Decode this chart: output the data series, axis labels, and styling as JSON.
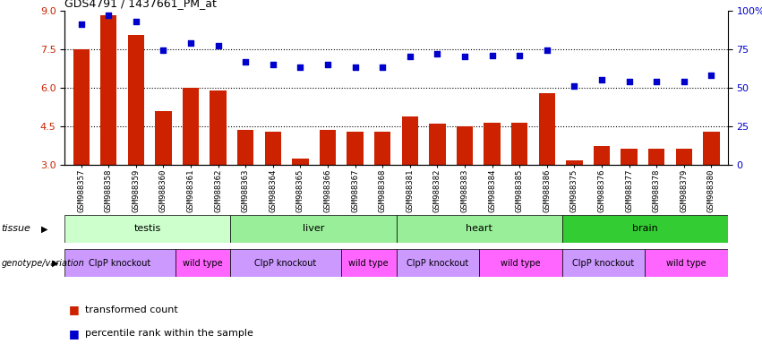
{
  "title": "GDS4791 / 1437661_PM_at",
  "samples": [
    "GSM988357",
    "GSM988358",
    "GSM988359",
    "GSM988360",
    "GSM988361",
    "GSM988362",
    "GSM988363",
    "GSM988364",
    "GSM988365",
    "GSM988366",
    "GSM988367",
    "GSM988368",
    "GSM988381",
    "GSM988382",
    "GSM988383",
    "GSM988384",
    "GSM988385",
    "GSM988386",
    "GSM988375",
    "GSM988376",
    "GSM988377",
    "GSM988378",
    "GSM988379",
    "GSM988380"
  ],
  "red_values": [
    7.5,
    8.8,
    8.05,
    5.1,
    6.0,
    5.9,
    4.35,
    4.3,
    3.25,
    4.35,
    4.3,
    4.3,
    4.9,
    4.6,
    4.5,
    4.65,
    4.65,
    5.8,
    3.2,
    3.75,
    3.65,
    3.65,
    3.65,
    4.3
  ],
  "blue_values": [
    91,
    97,
    93,
    74,
    79,
    77,
    67,
    65,
    63,
    65,
    63,
    63,
    70,
    72,
    70,
    71,
    71,
    74,
    51,
    55,
    54,
    54,
    54,
    58
  ],
  "tissue_blocks": [
    {
      "label": "testis",
      "start": 0,
      "end": 6,
      "color": "#ccffcc"
    },
    {
      "label": "liver",
      "start": 6,
      "end": 12,
      "color": "#99ee99"
    },
    {
      "label": "heart",
      "start": 12,
      "end": 18,
      "color": "#99ee99"
    },
    {
      "label": "brain",
      "start": 18,
      "end": 24,
      "color": "#33cc33"
    }
  ],
  "geno_blocks": [
    {
      "label": "ClpP knockout",
      "start": 0,
      "end": 4,
      "color": "#cc99ff"
    },
    {
      "label": "wild type",
      "start": 4,
      "end": 6,
      "color": "#ff66ff"
    },
    {
      "label": "ClpP knockout",
      "start": 6,
      "end": 10,
      "color": "#cc99ff"
    },
    {
      "label": "wild type",
      "start": 10,
      "end": 12,
      "color": "#ff66ff"
    },
    {
      "label": "ClpP knockout",
      "start": 12,
      "end": 15,
      "color": "#cc99ff"
    },
    {
      "label": "wild type",
      "start": 15,
      "end": 18,
      "color": "#ff66ff"
    },
    {
      "label": "ClpP knockout",
      "start": 18,
      "end": 21,
      "color": "#cc99ff"
    },
    {
      "label": "wild type",
      "start": 21,
      "end": 24,
      "color": "#ff66ff"
    }
  ],
  "ylim_left": [
    3,
    9
  ],
  "ylim_right": [
    0,
    100
  ],
  "yticks_left": [
    3,
    4.5,
    6,
    7.5,
    9
  ],
  "yticks_right": [
    0,
    25,
    50,
    75,
    100
  ],
  "bar_color": "#cc2200",
  "dot_color": "#0000cc",
  "legend_items": [
    "transformed count",
    "percentile rank within the sample"
  ],
  "left_labels": [
    "tissue",
    "genotype/variation"
  ]
}
